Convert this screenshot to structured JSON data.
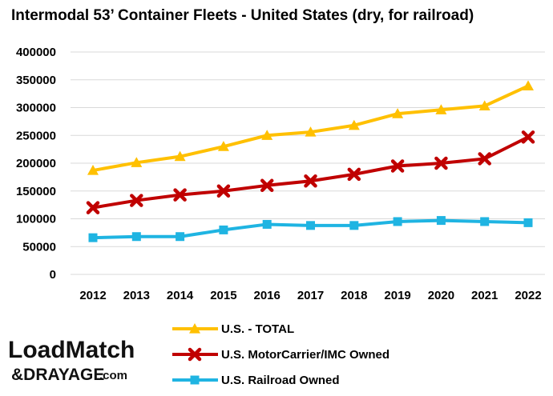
{
  "chart_data": {
    "type": "line",
    "title": "Intermodal 53’ Container Fleets - United States  (dry, for railroad)",
    "xlabel": "",
    "ylabel": "",
    "categories": [
      "2012",
      "2013",
      "2014",
      "2015",
      "2016",
      "2017",
      "2018",
      "2019",
      "2020",
      "2021",
      "2022"
    ],
    "ylim": [
      0,
      400000
    ],
    "yticks": [
      "0",
      "50000",
      "100000",
      "150000",
      "200000",
      "250000",
      "300000",
      "350000",
      "400000"
    ],
    "grid": true,
    "legend_position": "bottom",
    "series": [
      {
        "name": "U.S. - TOTAL",
        "color": "#FFC000",
        "marker": "triangle",
        "values": [
          187000,
          201000,
          212000,
          230000,
          250000,
          256000,
          268000,
          289000,
          296000,
          303000,
          339000
        ]
      },
      {
        "name": "U.S. MotorCarrier/IMC Owned",
        "color": "#C00000",
        "marker": "x",
        "values": [
          120000,
          133000,
          143000,
          150000,
          160000,
          168000,
          180000,
          195000,
          200000,
          208000,
          247000
        ]
      },
      {
        "name": "U.S. Railroad Owned",
        "color": "#1FB4E2",
        "marker": "square",
        "values": [
          66000,
          68000,
          68000,
          80000,
          90000,
          88000,
          88000,
          95000,
          97000,
          95000,
          93000
        ]
      }
    ]
  },
  "logo": {
    "line1": "LoadMatch",
    "line2": "&DRAYAGE",
    "line3": ".com"
  }
}
